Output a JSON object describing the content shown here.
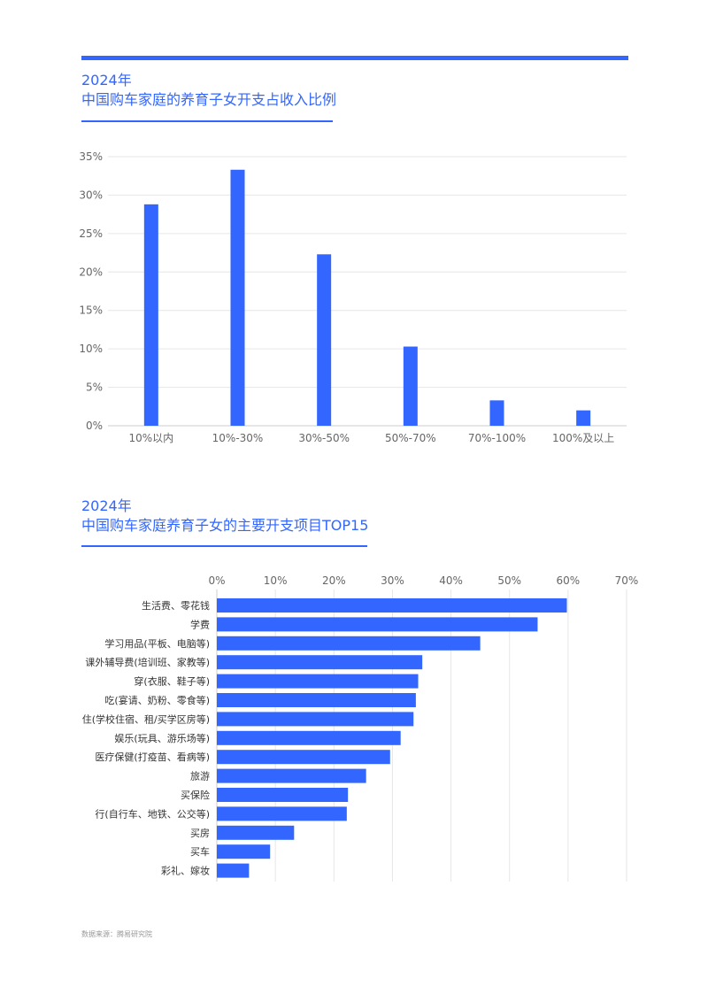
{
  "colors": {
    "accent": "#3366ff",
    "grid": "#e6e6e6",
    "axis_text": "#666666"
  },
  "section1": {
    "title_line1": "2024年",
    "title_line2": "中国购车家庭的养育子女开支占收入比例"
  },
  "section2": {
    "title_line1": "2024年",
    "title_line2": "中国购车家庭养育子女的主要开支项目TOP15"
  },
  "source": "数据来源：腾易研究院",
  "chart_data": [
    {
      "type": "bar",
      "orientation": "vertical",
      "categories": [
        "10%以内",
        "10%-30%",
        "30%-50%",
        "50%-70%",
        "70%-100%",
        "100%及以上"
      ],
      "values": [
        28.8,
        33.3,
        22.3,
        10.3,
        3.3,
        2.0
      ],
      "ylim": [
        0,
        35
      ],
      "yticks": [
        "0%",
        "5%",
        "10%",
        "15%",
        "20%",
        "25%",
        "30%",
        "35%"
      ],
      "grid": true
    },
    {
      "type": "bar",
      "orientation": "horizontal",
      "categories": [
        "生活费、零花钱",
        "学费",
        "学习用品(平板、电脑等)",
        "课外辅导费(培训班、家教等)",
        "穿(衣服、鞋子等)",
        "吃(宴请、奶粉、零食等)",
        "住(学校住宿、租/买学区房等)",
        "娱乐(玩具、游乐场等)",
        "医疗保健(打疫苗、看病等)",
        "旅游",
        "买保险",
        "行(自行车、地铁、公交等)",
        "买房",
        "买车",
        "彩礼、嫁妆"
      ],
      "values": [
        59.8,
        54.8,
        45.0,
        35.1,
        34.4,
        34.0,
        33.6,
        31.4,
        29.6,
        25.5,
        22.4,
        22.2,
        13.2,
        9.1,
        5.5
      ],
      "xlim": [
        0,
        70
      ],
      "xticks": [
        "0%",
        "10%",
        "20%",
        "30%",
        "40%",
        "50%",
        "60%",
        "70%"
      ],
      "grid": true
    }
  ]
}
